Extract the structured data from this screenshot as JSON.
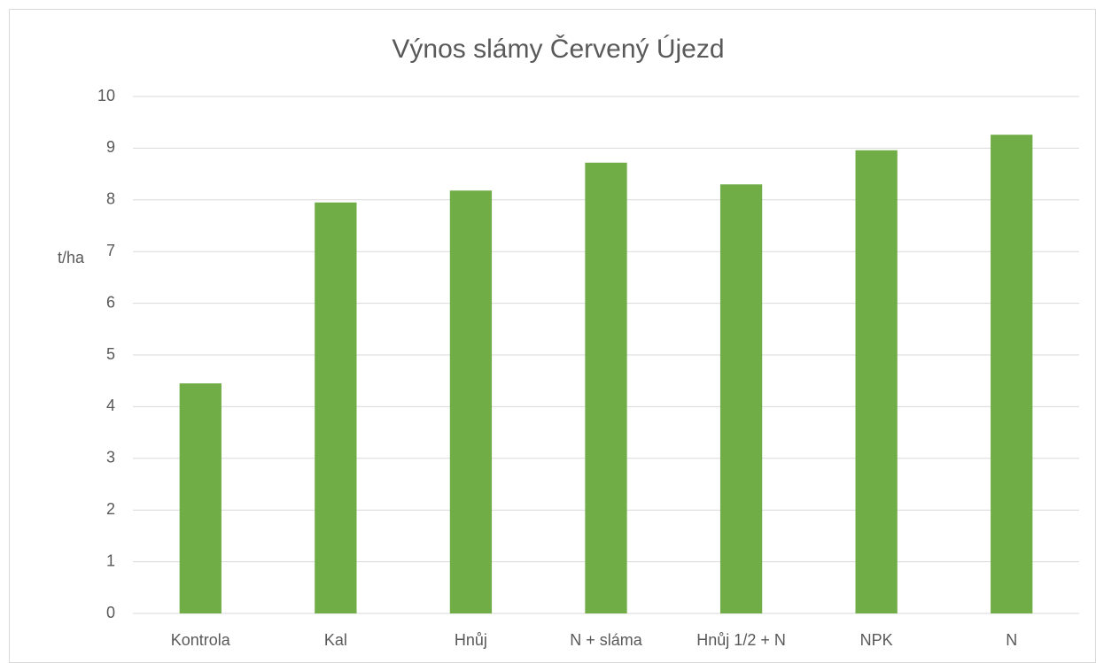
{
  "chart_data": {
    "type": "bar",
    "title": "Výnos slámy Červený Újezd",
    "y_label": "t/ha",
    "categories": [
      "Kontrola",
      "Kal",
      "Hnůj",
      "N + sláma",
      "Hnůj 1/2 + N",
      "NPK",
      "N"
    ],
    "values": [
      4.45,
      7.95,
      8.18,
      8.72,
      8.3,
      8.96,
      9.26
    ],
    "color": "#70ad47",
    "ylim": [
      0,
      10
    ],
    "yticks": [
      0,
      1,
      2,
      3,
      4,
      5,
      6,
      7,
      8,
      9,
      10
    ],
    "grid": true
  }
}
